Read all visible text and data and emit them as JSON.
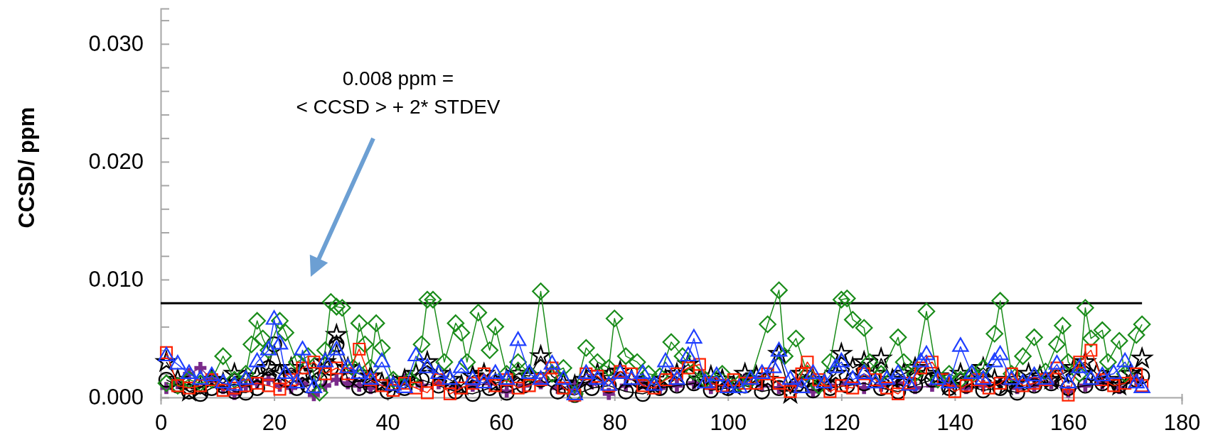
{
  "chart_data": {
    "type": "line",
    "ylabel": "CCSD/ ppm",
    "xlim": [
      0,
      180
    ],
    "xticks": [
      0,
      20,
      40,
      60,
      80,
      100,
      120,
      140,
      160,
      180
    ],
    "ylim": [
      0,
      0.033
    ],
    "yticks": [
      {
        "value": 0,
        "label": "0.000"
      },
      {
        "value": 0.002,
        "label": null
      },
      {
        "value": 0.004,
        "label": null
      },
      {
        "value": 0.006,
        "label": null
      },
      {
        "value": 0.008,
        "label": null
      },
      {
        "value": 0.01,
        "label": "0.010"
      },
      {
        "value": 0.012,
        "label": null
      },
      {
        "value": 0.014,
        "label": null
      },
      {
        "value": 0.016,
        "label": null
      },
      {
        "value": 0.018,
        "label": null
      },
      {
        "value": 0.02,
        "label": "0.020"
      },
      {
        "value": 0.022,
        "label": null
      },
      {
        "value": 0.024,
        "label": null
      },
      {
        "value": 0.026,
        "label": null
      },
      {
        "value": 0.028,
        "label": null
      },
      {
        "value": 0.03,
        "label": "0.030"
      },
      {
        "value": 0.032,
        "label": null
      }
    ],
    "grid": false,
    "ref_lines": [
      {
        "axis": "y",
        "value": 0.008,
        "color": "#000000"
      }
    ],
    "annotations": [
      "0.008 ppm =\n< CCSD > + 2* STDEV"
    ],
    "series": [
      {
        "color": "#7a2a8a",
        "marker": "cross",
        "x": [
          1,
          3,
          5,
          7,
          9,
          11,
          13,
          15,
          17,
          19,
          21,
          23,
          25,
          27,
          29,
          31,
          33,
          35,
          37,
          40,
          43,
          46,
          49,
          52,
          55,
          58,
          61,
          64,
          67,
          70,
          73,
          76,
          79,
          82,
          85,
          88,
          91,
          94,
          97,
          100,
          103,
          106,
          109,
          112,
          115,
          118,
          121,
          124,
          127,
          130,
          133,
          136,
          139,
          142,
          145,
          148,
          151,
          154,
          157,
          160,
          163,
          166,
          169,
          172
        ],
        "values": [
          0.0008,
          0.0012,
          0.002,
          0.0025,
          0.0015,
          0.0008,
          0.0003,
          0.001,
          0.0012,
          0.0015,
          0.001,
          0.0008,
          0.0012,
          0.0002,
          0.001,
          0.0015,
          0.0012,
          0.001,
          0.0008,
          0.0012,
          0.0015,
          0.001,
          0.0012,
          0.0008,
          0.001,
          0.0012,
          0.0005,
          0.001,
          0.0012,
          0.0008,
          0.001,
          0.0012,
          0.0003,
          0.001,
          0.0012,
          0.0008,
          0.001,
          0.0012,
          0.0008,
          0.001,
          0.0015,
          0.001,
          0.0008,
          0.0012,
          0.0005,
          0.001,
          0.0012,
          0.0008,
          0.001,
          0.0012,
          0.0008,
          0.001,
          0.0012,
          0.0008,
          0.001,
          0.0012,
          0.0008,
          0.001,
          0.0012,
          0.0005,
          0.001,
          0.0012,
          0.0008,
          0.0015
        ]
      },
      {
        "color": "#000000",
        "marker": "circle",
        "x": [
          1,
          3,
          5,
          7,
          9,
          11,
          13,
          15,
          17,
          19,
          20,
          22,
          24,
          26,
          28,
          30,
          31,
          33,
          35,
          37,
          40,
          43,
          46,
          49,
          52,
          55,
          58,
          61,
          64,
          67,
          70,
          73,
          76,
          79,
          82,
          85,
          88,
          91,
          94,
          97,
          100,
          103,
          106,
          109,
          112,
          115,
          118,
          121,
          124,
          127,
          130,
          133,
          136,
          139,
          142,
          145,
          148,
          151,
          154,
          157,
          160,
          163,
          166,
          169,
          172,
          173
        ],
        "values": [
          0.0015,
          0.001,
          0.0005,
          0.0003,
          0.0008,
          0.001,
          0.0005,
          0.0004,
          0.0008,
          0.0025,
          0.0045,
          0.0015,
          0.0008,
          0.001,
          0.0015,
          0.0025,
          0.0045,
          0.0015,
          0.0008,
          0.001,
          0.0005,
          0.0008,
          0.0015,
          0.001,
          0.0005,
          0.0003,
          0.0008,
          0.0004,
          0.001,
          0.0015,
          0.0005,
          0.0002,
          0.0008,
          0.001,
          0.0005,
          0.0003,
          0.0008,
          0.001,
          0.0012,
          0.0006,
          0.0008,
          0.001,
          0.0005,
          0.0008,
          0.001,
          0.0006,
          0.0008,
          0.001,
          0.0012,
          0.0008,
          0.0005,
          0.001,
          0.0015,
          0.0008,
          0.001,
          0.0006,
          0.0008,
          0.0004,
          0.001,
          0.0012,
          0.0008,
          0.001,
          0.0012,
          0.001,
          0.0015,
          0.0018
        ]
      },
      {
        "color": "#000000",
        "marker": "star",
        "x": [
          1,
          3,
          5,
          7,
          9,
          11,
          13,
          15,
          17,
          19,
          21,
          23,
          25,
          27,
          29,
          31,
          33,
          35,
          37,
          39,
          41,
          43,
          45,
          47,
          49,
          51,
          53,
          55,
          57,
          59,
          61,
          63,
          65,
          67,
          69,
          71,
          73,
          75,
          77,
          79,
          81,
          83,
          85,
          87,
          89,
          91,
          93,
          95,
          97,
          99,
          101,
          103,
          105,
          107,
          109,
          111,
          113,
          115,
          117,
          119,
          120,
          122,
          124,
          126,
          127,
          129,
          131,
          133,
          135,
          137,
          139,
          141,
          143,
          145,
          147,
          149,
          151,
          153,
          155,
          157,
          159,
          161,
          163,
          165,
          167,
          169,
          171,
          173
        ],
        "values": [
          0.003,
          0.0015,
          0.0005,
          0.0008,
          0.0015,
          0.0012,
          0.002,
          0.0015,
          0.0018,
          0.0025,
          0.002,
          0.0025,
          0.002,
          0.0022,
          0.003,
          0.0053,
          0.0025,
          0.002,
          0.0018,
          0.0012,
          0.001,
          0.0015,
          0.002,
          0.003,
          0.002,
          0.0015,
          0.001,
          0.0018,
          0.002,
          0.0012,
          0.0015,
          0.002,
          0.0018,
          0.0035,
          0.0018,
          0.0012,
          0.001,
          0.0015,
          0.002,
          0.0018,
          0.0022,
          0.0015,
          0.0012,
          0.001,
          0.0015,
          0.002,
          0.0028,
          0.0015,
          0.0018,
          0.0015,
          0.001,
          0.002,
          0.0018,
          0.0015,
          0.0037,
          0.0003,
          0.002,
          0.0015,
          0.0012,
          0.002,
          0.0037,
          0.0025,
          0.003,
          0.002,
          0.0033,
          0.0015,
          0.002,
          0.0025,
          0.002,
          0.0018,
          0.001,
          0.002,
          0.0015,
          0.0025,
          0.0015,
          0.001,
          0.0015,
          0.002,
          0.0018,
          0.0015,
          0.002,
          0.0025,
          0.003,
          0.002,
          0.0015,
          0.001,
          0.002,
          0.0033
        ]
      },
      {
        "color": "#1a8c1a",
        "marker": "diamond",
        "x": [
          1,
          3,
          5,
          7,
          9,
          11,
          13,
          15,
          16,
          17,
          18,
          19,
          21,
          22,
          24,
          26,
          28,
          29,
          30,
          31,
          32,
          34,
          35,
          36,
          37,
          38,
          39,
          41,
          44,
          46,
          47,
          48,
          50,
          52,
          53,
          54,
          56,
          58,
          59,
          61,
          63,
          65,
          67,
          69,
          71,
          73,
          75,
          77,
          79,
          80,
          82,
          84,
          86,
          88,
          90,
          92,
          94,
          96,
          99,
          102,
          104,
          107,
          109,
          110,
          112,
          114,
          116,
          118,
          120,
          121,
          122,
          124,
          125,
          127,
          130,
          131,
          133,
          135,
          137,
          139,
          141,
          143,
          145,
          147,
          148,
          150,
          152,
          154,
          156,
          158,
          159,
          160,
          162,
          163,
          164,
          166,
          167,
          169,
          170,
          172,
          173
        ],
        "values": [
          0.0012,
          0.001,
          0.0015,
          0.0012,
          0.0015,
          0.0035,
          0.0015,
          0.002,
          0.0045,
          0.0065,
          0.005,
          0.004,
          0.0065,
          0.0055,
          0.003,
          0.0035,
          0.0004,
          0.004,
          0.0081,
          0.0077,
          0.0076,
          0.0025,
          0.0063,
          0.0045,
          0.0025,
          0.0063,
          0.0042,
          0.0015,
          0.0015,
          0.0045,
          0.0083,
          0.0083,
          0.003,
          0.0063,
          0.0055,
          0.003,
          0.0072,
          0.004,
          0.006,
          0.002,
          0.003,
          0.002,
          0.009,
          0.002,
          0.0025,
          0.0003,
          0.0042,
          0.003,
          0.0025,
          0.0067,
          0.0035,
          0.003,
          0.002,
          0.0018,
          0.0047,
          0.0035,
          0.0022,
          0.0015,
          0.002,
          0.0012,
          0.0015,
          0.0062,
          0.0091,
          0.0035,
          0.005,
          0.002,
          0.001,
          0.003,
          0.0083,
          0.0084,
          0.0066,
          0.0059,
          0.003,
          0.002,
          0.0051,
          0.003,
          0.002,
          0.0073,
          0.0015,
          0.002,
          0.0015,
          0.002,
          0.0025,
          0.0054,
          0.0082,
          0.002,
          0.0035,
          0.0051,
          0.0022,
          0.0045,
          0.0061,
          0.003,
          0.002,
          0.0076,
          0.005,
          0.0057,
          0.003,
          0.0048,
          0.002,
          0.0053,
          0.0062
        ]
      },
      {
        "color": "#ff2200",
        "marker": "square",
        "x": [
          1,
          3,
          5,
          7,
          9,
          11,
          13,
          15,
          17,
          19,
          21,
          23,
          25,
          27,
          29,
          31,
          33,
          35,
          37,
          39,
          41,
          43,
          45,
          47,
          49,
          51,
          53,
          55,
          57,
          59,
          61,
          63,
          65,
          67,
          69,
          71,
          73,
          75,
          77,
          79,
          81,
          83,
          85,
          87,
          89,
          91,
          93,
          95,
          97,
          99,
          101,
          103,
          105,
          107,
          109,
          111,
          113,
          114,
          116,
          118,
          120,
          122,
          124,
          126,
          128,
          130,
          132,
          134,
          136,
          138,
          140,
          142,
          144,
          146,
          148,
          150,
          152,
          154,
          156,
          158,
          160,
          162,
          164,
          166,
          168,
          170,
          172,
          173
        ],
        "values": [
          0.0038,
          0.001,
          0.0008,
          0.001,
          0.0015,
          0.0006,
          0.0008,
          0.001,
          0.0012,
          0.001,
          0.0007,
          0.0015,
          0.0025,
          0.003,
          0.002,
          0.0025,
          0.002,
          0.0041,
          0.0015,
          0.001,
          0.0006,
          0.0012,
          0.0008,
          0.0004,
          0.0015,
          0.0003,
          0.0008,
          0.0012,
          0.002,
          0.001,
          0.0015,
          0.0008,
          0.001,
          0.0015,
          0.0025,
          0.0008,
          0.0002,
          0.002,
          0.0018,
          0.001,
          0.0022,
          0.002,
          0.001,
          0.0008,
          0.0015,
          0.002,
          0.0025,
          0.0028,
          0.0012,
          0.001,
          0.0015,
          0.0012,
          0.0012,
          0.002,
          0.0012,
          0.0005,
          0.002,
          0.003,
          0.0015,
          0.0005,
          0.001,
          0.0008,
          0.002,
          0.0015,
          0.0008,
          0.0003,
          0.0012,
          0.0025,
          0.003,
          0.0015,
          0.0005,
          0.001,
          0.0015,
          0.0008,
          0.0012,
          0.002,
          0.001,
          0.0012,
          0.0015,
          0.0025,
          0.0002,
          0.003,
          0.004,
          0.0015,
          0.001,
          0.0012,
          0.002,
          0.001
        ]
      },
      {
        "color": "#1f3fff",
        "marker": "triangle",
        "x": [
          1,
          3,
          5,
          7,
          9,
          11,
          13,
          15,
          17,
          19,
          20,
          21,
          22,
          24,
          25,
          27,
          29,
          31,
          33,
          35,
          37,
          39,
          41,
          43,
          45,
          47,
          49,
          51,
          53,
          55,
          57,
          59,
          61,
          63,
          65,
          67,
          69,
          71,
          73,
          75,
          77,
          79,
          81,
          83,
          85,
          87,
          89,
          91,
          93,
          94,
          96,
          98,
          100,
          102,
          104,
          106,
          108,
          109,
          111,
          113,
          115,
          117,
          119,
          120,
          122,
          124,
          126,
          128,
          130,
          132,
          134,
          135,
          137,
          139,
          141,
          143,
          145,
          147,
          148,
          150,
          152,
          154,
          156,
          158,
          160,
          162,
          164,
          166,
          168,
          170,
          172,
          173
        ],
        "values": [
          0.0035,
          0.0028,
          0.002,
          0.0015,
          0.0018,
          0.0012,
          0.001,
          0.0015,
          0.003,
          0.004,
          0.0066,
          0.0045,
          0.002,
          0.0012,
          0.004,
          0.0008,
          0.003,
          0.004,
          0.0025,
          0.002,
          0.0015,
          0.003,
          0.001,
          0.0008,
          0.0035,
          0.0025,
          0.002,
          0.0015,
          0.0025,
          0.0015,
          0.0012,
          0.002,
          0.0015,
          0.0048,
          0.002,
          0.0015,
          0.0028,
          0.0015,
          0.0002,
          0.002,
          0.0015,
          0.001,
          0.002,
          0.0015,
          0.002,
          0.001,
          0.003,
          0.0015,
          0.0035,
          0.005,
          0.0012,
          0.0018,
          0.0008,
          0.0008,
          0.0015,
          0.002,
          0.0025,
          0.0039,
          0.0015,
          0.0008,
          0.002,
          0.0012,
          0.0025,
          0.003,
          0.0015,
          0.002,
          0.0012,
          0.0015,
          0.002,
          0.001,
          0.003,
          0.0036,
          0.0015,
          0.0012,
          0.0043,
          0.002,
          0.0015,
          0.003,
          0.0036,
          0.0015,
          0.0012,
          0.0018,
          0.0015,
          0.0028,
          0.0012,
          0.0025,
          0.0015,
          0.0018,
          0.002,
          0.003,
          0.0012,
          0.0008
        ]
      }
    ]
  }
}
